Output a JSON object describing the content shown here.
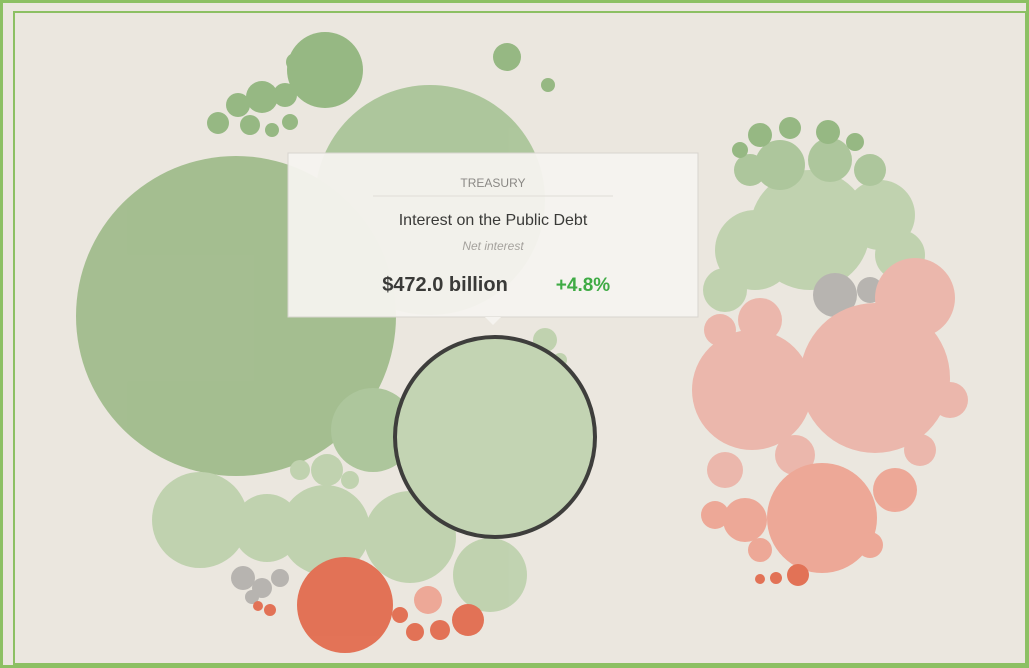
{
  "tooltip": {
    "department": "TREASURY",
    "title": "Interest on the Public Debt",
    "subtitle": "Net interest",
    "amount": "$472.0 billion",
    "change": "+4.8%"
  }
}
